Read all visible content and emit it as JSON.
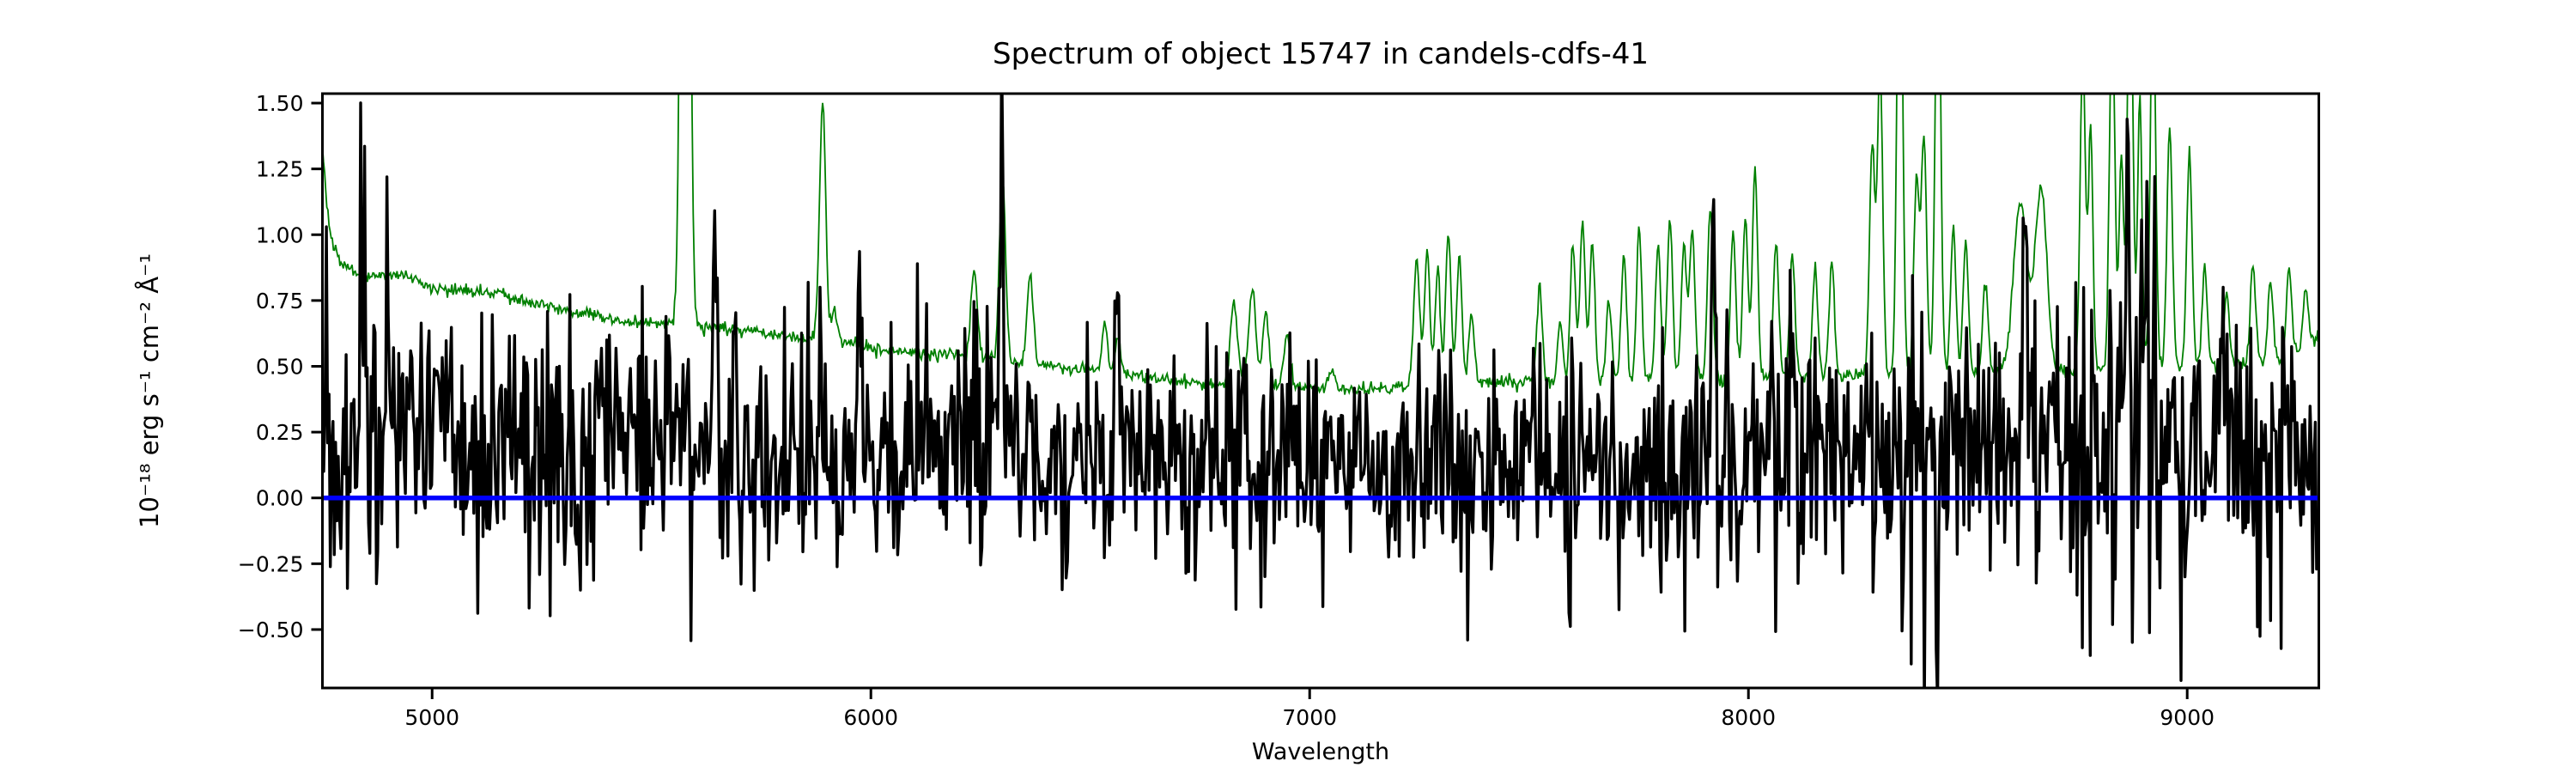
{
  "figure": {
    "background": "#ffffff",
    "kind": "matplotlib-style spectrum plot"
  },
  "chart_data": {
    "type": "line",
    "title": "Spectrum of object 15747 in candels-cdfs-41",
    "xlabel": "Wavelength",
    "ylabel": "10⁻¹⁸ erg s⁻¹ cm⁻² Å⁻¹",
    "xlim": [
      4750,
      9300
    ],
    "ylim": [
      -0.722,
      1.536
    ],
    "x_ticks": [
      5000,
      6000,
      7000,
      8000,
      9000
    ],
    "x_tick_labels": [
      "5000",
      "6000",
      "7000",
      "8000",
      "9000"
    ],
    "y_ticks": [
      -0.5,
      -0.25,
      0.0,
      0.25,
      0.5,
      0.75,
      1.0,
      1.25,
      1.5
    ],
    "y_tick_labels": [
      "−0.50",
      "−0.25",
      "0.00",
      "0.25",
      "0.50",
      "0.75",
      "1.00",
      "1.25",
      "1.50"
    ],
    "grid": false,
    "legend": null,
    "series": [
      {
        "name": "object-flux",
        "color": "#000000",
        "linewidth": 3.4,
        "description": "noisy object spectrum"
      },
      {
        "name": "sky-noise-spectrum",
        "color": "#008000",
        "linewidth": 1.8,
        "description": "thin green noise/sky spectrum"
      },
      {
        "name": "model-zero-line",
        "color": "#0000ff",
        "linewidth": 5.5,
        "constant_value": 0.0,
        "description": "thick blue flat model at zero, drawn on top"
      }
    ],
    "sampling_step_angstrom": {
      "flux": 3.0,
      "sky": 2.5
    },
    "noise_seed": 15747,
    "flux_continuum_knots": [
      [
        4750,
        0.22
      ],
      [
        5200,
        0.21
      ],
      [
        5700,
        0.19
      ],
      [
        6200,
        0.17
      ],
      [
        6700,
        0.15
      ],
      [
        7200,
        0.12
      ],
      [
        7700,
        0.12
      ],
      [
        8200,
        0.14
      ],
      [
        8700,
        0.16
      ],
      [
        9100,
        0.16
      ],
      [
        9300,
        0.12
      ]
    ],
    "flux_noise_sigma_knots": [
      [
        4750,
        0.3
      ],
      [
        5000,
        0.27
      ],
      [
        5400,
        0.24
      ],
      [
        5800,
        0.22
      ],
      [
        6300,
        0.21
      ],
      [
        6800,
        0.19
      ],
      [
        7300,
        0.18
      ],
      [
        7800,
        0.19
      ],
      [
        8200,
        0.22
      ],
      [
        8600,
        0.24
      ],
      [
        9000,
        0.26
      ],
      [
        9300,
        0.24
      ]
    ],
    "flux_features": [
      [
        4840,
        1.0,
        4
      ],
      [
        4897,
        0.68,
        4
      ],
      [
        5645,
        0.72,
        5
      ],
      [
        5690,
        0.6,
        4
      ],
      [
        5975,
        0.78,
        4
      ],
      [
        6297,
        0.85,
        5
      ],
      [
        6560,
        0.45,
        4
      ],
      [
        7920,
        0.92,
        5
      ],
      [
        8100,
        0.55,
        4
      ],
      [
        8630,
        0.7,
        5
      ],
      [
        8863,
        1.22,
        4
      ],
      [
        8907,
        0.98,
        4
      ],
      [
        9080,
        0.55,
        4
      ]
    ],
    "sky_baseline_knots": [
      [
        4750,
        1.33
      ],
      [
        4765,
        1.02
      ],
      [
        4790,
        0.89
      ],
      [
        4850,
        0.84
      ],
      [
        4920,
        0.85
      ],
      [
        5000,
        0.8
      ],
      [
        5150,
        0.77
      ],
      [
        5300,
        0.71
      ],
      [
        5450,
        0.67
      ],
      [
        5600,
        0.655
      ],
      [
        5750,
        0.63
      ],
      [
        5900,
        0.6
      ],
      [
        6050,
        0.56
      ],
      [
        6200,
        0.54
      ],
      [
        6350,
        0.51
      ],
      [
        6500,
        0.49
      ],
      [
        6650,
        0.45
      ],
      [
        6800,
        0.43
      ],
      [
        6950,
        0.42
      ],
      [
        7100,
        0.41
      ],
      [
        7250,
        0.42
      ],
      [
        7400,
        0.44
      ],
      [
        7550,
        0.44
      ],
      [
        7700,
        0.44
      ],
      [
        7850,
        0.45
      ],
      [
        8000,
        0.45
      ],
      [
        8150,
        0.46
      ],
      [
        8300,
        0.47
      ],
      [
        8450,
        0.47
      ],
      [
        8600,
        0.48
      ],
      [
        8750,
        0.48
      ],
      [
        8900,
        0.5
      ],
      [
        9050,
        0.5
      ],
      [
        9200,
        0.52
      ],
      [
        9260,
        0.55
      ],
      [
        9300,
        0.62
      ]
    ],
    "sky_lines": [
      [
        5577,
        6.0,
        8
      ],
      [
        5890,
        1.5,
        7
      ],
      [
        5917,
        0.72,
        6
      ],
      [
        6235,
        0.88,
        7
      ],
      [
        6300,
        1.2,
        7
      ],
      [
        6363,
        0.86,
        7
      ],
      [
        6533,
        0.66,
        6
      ],
      [
        6563,
        0.62,
        6
      ],
      [
        6827,
        0.74,
        8
      ],
      [
        6869,
        0.8,
        8
      ],
      [
        6900,
        0.7,
        7
      ],
      [
        6948,
        0.62,
        7
      ],
      [
        7050,
        0.48,
        8
      ],
      [
        7244,
        0.9,
        7
      ],
      [
        7268,
        0.94,
        6
      ],
      [
        7292,
        0.86,
        6
      ],
      [
        7316,
        1.02,
        6
      ],
      [
        7341,
        0.92,
        6
      ],
      [
        7369,
        0.7,
        6
      ],
      [
        7524,
        0.8,
        6
      ],
      [
        7571,
        0.66,
        6
      ],
      [
        7600,
        0.96,
        6
      ],
      [
        7622,
        1.04,
        6
      ],
      [
        7644,
        0.96,
        6
      ],
      [
        7682,
        0.75,
        6
      ],
      [
        7716,
        0.92,
        6
      ],
      [
        7751,
        1.02,
        6
      ],
      [
        7794,
        0.97,
        6
      ],
      [
        7821,
        1.07,
        6
      ],
      [
        7853,
        0.97,
        6
      ],
      [
        7872,
        1.02,
        6
      ],
      [
        7913,
        1.12,
        6
      ],
      [
        7965,
        1.02,
        6
      ],
      [
        7993,
        1.07,
        6
      ],
      [
        8015,
        1.24,
        6
      ],
      [
        8063,
        0.97,
        6
      ],
      [
        8100,
        0.92,
        6
      ],
      [
        8152,
        0.87,
        6
      ],
      [
        8190,
        0.9,
        6
      ],
      [
        8282,
        1.35,
        6
      ],
      [
        8300,
        1.65,
        6
      ],
      [
        8345,
        2.6,
        6
      ],
      [
        8383,
        1.22,
        6
      ],
      [
        8400,
        1.38,
        6
      ],
      [
        8432,
        2.3,
        6
      ],
      [
        8467,
        1.02,
        6
      ],
      [
        8495,
        0.97,
        6
      ],
      [
        8540,
        0.82,
        6
      ],
      [
        8620,
        1.12,
        16
      ],
      [
        8667,
        1.18,
        13
      ],
      [
        8762,
        1.7,
        6
      ],
      [
        8780,
        1.42,
        5
      ],
      [
        8829,
        1.9,
        6
      ],
      [
        8850,
        1.3,
        5
      ],
      [
        8870,
        2.2,
        6
      ],
      [
        8892,
        1.52,
        5
      ],
      [
        8922,
        1.95,
        6
      ],
      [
        8960,
        1.42,
        6
      ],
      [
        9005,
        1.32,
        6
      ],
      [
        9040,
        0.88,
        6
      ],
      [
        9090,
        0.78,
        6
      ],
      [
        9150,
        0.88,
        6
      ],
      [
        9190,
        0.82,
        6
      ],
      [
        9232,
        0.88,
        6
      ],
      [
        9270,
        0.78,
        6
      ]
    ],
    "axis_color": "#000000",
    "spine_linewidth": 3,
    "tick_length": 13
  }
}
